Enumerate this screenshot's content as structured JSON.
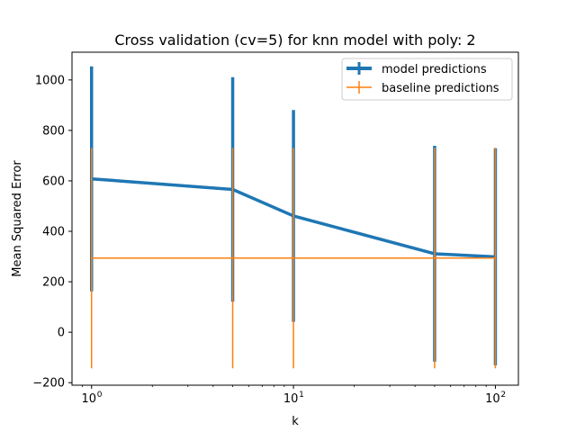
{
  "chart_data": {
    "type": "line",
    "title": "Cross validation (cv=5) for knn model with poly: 2",
    "xlabel": "k",
    "ylabel": "Mean Squared Error",
    "xscale": "log",
    "xlim": [
      0.8,
      130
    ],
    "ylim": [
      -210,
      1110
    ],
    "grid": false,
    "legend_position": "top-right",
    "x": [
      1,
      5,
      10,
      50,
      100
    ],
    "x_tick_labels": [
      {
        "value": 1,
        "base": "10",
        "exp": "0"
      },
      {
        "value": 10,
        "base": "10",
        "exp": "1"
      },
      {
        "value": 100,
        "base": "10",
        "exp": "2"
      }
    ],
    "y_ticks": [
      -200,
      0,
      200,
      400,
      600,
      800,
      1000
    ],
    "y_tick_labels": [
      "−200",
      "0",
      "200",
      "400",
      "600",
      "800",
      "1000"
    ],
    "series": [
      {
        "name": "model predictions",
        "color": "#1f77b4",
        "values": [
          608,
          566,
          461,
          311,
          299
        ],
        "error": [
          446,
          445,
          420,
          428,
          430
        ]
      },
      {
        "name": "baseline predictions",
        "color": "#ff7f0e",
        "values": [
          294,
          294,
          294,
          294,
          294
        ],
        "error": [
          437,
          437,
          437,
          437,
          437
        ]
      }
    ]
  }
}
